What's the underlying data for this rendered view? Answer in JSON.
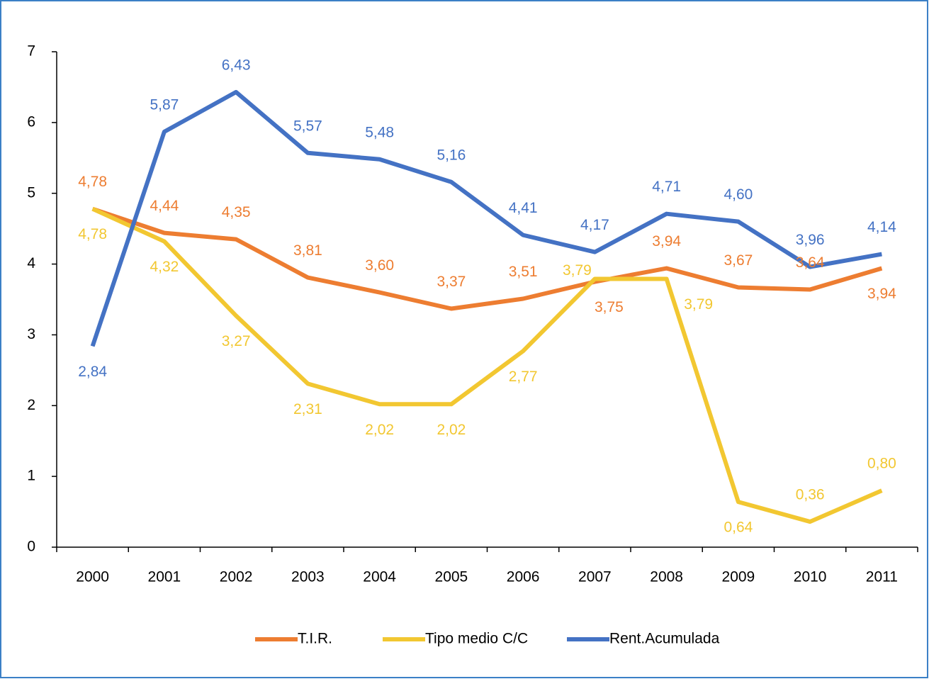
{
  "chart_data": {
    "type": "line",
    "categories": [
      "2000",
      "2001",
      "2002",
      "2003",
      "2004",
      "2005",
      "2006",
      "2007",
      "2008",
      "2009",
      "2010",
      "2011"
    ],
    "series": [
      {
        "name": "T.I.R.",
        "color": "#ed7d31",
        "values": [
          4.78,
          4.44,
          4.35,
          3.81,
          3.6,
          3.37,
          3.51,
          3.75,
          3.94,
          3.67,
          3.64,
          3.94
        ],
        "value_labels": [
          "4,78",
          "4,44",
          "4,35",
          "3,81",
          "3,60",
          "3,37",
          "3,51",
          "3,75",
          "3,94",
          "3,67",
          "3,64",
          "3,94"
        ]
      },
      {
        "name": "Tipo medio C/C",
        "color": "#f2c731",
        "values": [
          4.78,
          4.32,
          3.27,
          2.31,
          2.02,
          2.02,
          2.77,
          3.79,
          3.79,
          0.64,
          0.36,
          0.8
        ],
        "value_labels": [
          "4,78",
          "4,32",
          "3,27",
          "2,31",
          "2,02",
          "2,02",
          "2,77",
          "3,79",
          "3,79",
          "0,64",
          "0,36",
          "0,80"
        ]
      },
      {
        "name": "Rent.Acumulada",
        "color": "#4472c4",
        "values": [
          2.84,
          5.87,
          6.43,
          5.57,
          5.48,
          5.16,
          4.41,
          4.17,
          4.71,
          4.6,
          3.96,
          4.14
        ],
        "value_labels": [
          "2,84",
          "5,87",
          "6,43",
          "5,57",
          "5,48",
          "5,16",
          "4,41",
          "4,17",
          "4,71",
          "4,60",
          "3,96",
          "4,14"
        ]
      }
    ],
    "ylim": [
      0,
      7
    ],
    "yticks": [
      0,
      1,
      2,
      3,
      4,
      5,
      6,
      7
    ],
    "legend": "bottom"
  }
}
